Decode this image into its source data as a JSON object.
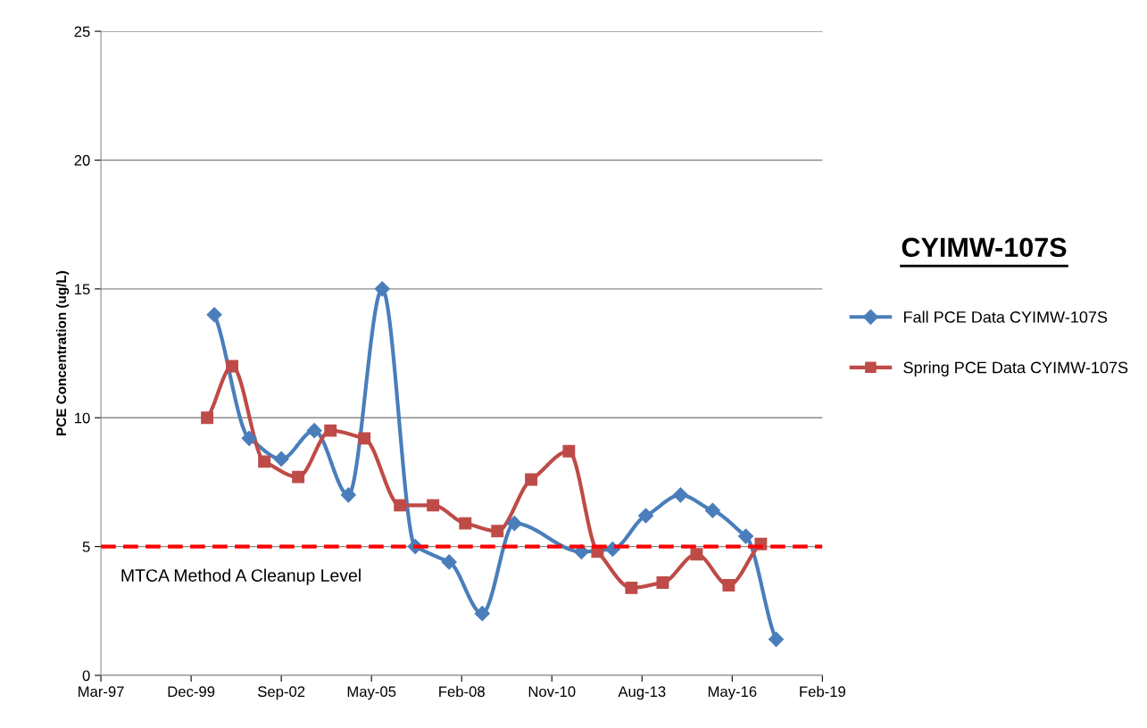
{
  "chart_data": {
    "type": "line",
    "title": "CYIMW-107S",
    "ylabel": "PCE Concentration (ug/L)",
    "series": [
      {
        "name": "Fall PCE Data CYIMW-107S",
        "color": "#4a7ebb",
        "marker": "diamond",
        "x": [
          "2000-08-19",
          "2001-09-10",
          "2002-09-01",
          "2003-09-02",
          "2004-09-14",
          "2005-09-24",
          "2006-09-25",
          "2007-10-06",
          "2008-10-07",
          "2009-09-29",
          "2011-10-12",
          "2012-09-22",
          "2013-09-25",
          "2014-10-15",
          "2015-10-06",
          "2016-10-08",
          "2017-09-09"
        ],
        "values": [
          14.0,
          9.2,
          8.4,
          9.5,
          7.0,
          15.0,
          5.0,
          4.4,
          2.4,
          5.9,
          4.8,
          4.9,
          6.2,
          7.0,
          6.4,
          5.4,
          1.4
        ]
      },
      {
        "name": "Spring PCE Data CYIMW-107S",
        "color": "#be4b48",
        "marker": "square",
        "x": [
          "2000-06-01",
          "2001-03-05",
          "2002-02-25",
          "2003-03-08",
          "2004-02-28",
          "2005-03-10",
          "2006-04-10",
          "2007-04-11",
          "2008-04-02",
          "2009-03-24",
          "2010-04-03",
          "2011-05-26",
          "2012-04-07",
          "2013-04-18",
          "2014-03-31",
          "2015-04-11",
          "2016-04-01",
          "2017-03-23"
        ],
        "values": [
          10.0,
          12.0,
          8.3,
          7.7,
          9.5,
          9.2,
          6.6,
          6.6,
          5.9,
          5.6,
          7.6,
          8.7,
          4.8,
          3.4,
          3.6,
          4.7,
          3.5,
          5.1
        ]
      }
    ],
    "xlim": [
      "1997-03-11",
      "2019-02-04"
    ],
    "xticks": [
      {
        "value": "1997-03-11",
        "label": "Mar-97"
      },
      {
        "value": "1999-12-06",
        "label": "Dec-99"
      },
      {
        "value": "2002-09-01",
        "label": "Sep-02"
      },
      {
        "value": "2005-05-28",
        "label": "May-05"
      },
      {
        "value": "2008-02-22",
        "label": "Feb-08"
      },
      {
        "value": "2010-11-18",
        "label": "Nov-10"
      },
      {
        "value": "2013-08-14",
        "label": "Aug-13"
      },
      {
        "value": "2016-05-10",
        "label": "May-16"
      },
      {
        "value": "2019-02-04",
        "label": "Feb-19"
      }
    ],
    "ylim": [
      0,
      25
    ],
    "yticks": [
      0,
      5,
      10,
      15,
      20,
      25
    ],
    "ref_lines": [
      {
        "axis": "y",
        "value": 5,
        "label": "MTCA Method A Cleanup Level",
        "color": "#ff0000",
        "line_style": "dashed"
      }
    ],
    "grid": "y",
    "legend": "right"
  }
}
